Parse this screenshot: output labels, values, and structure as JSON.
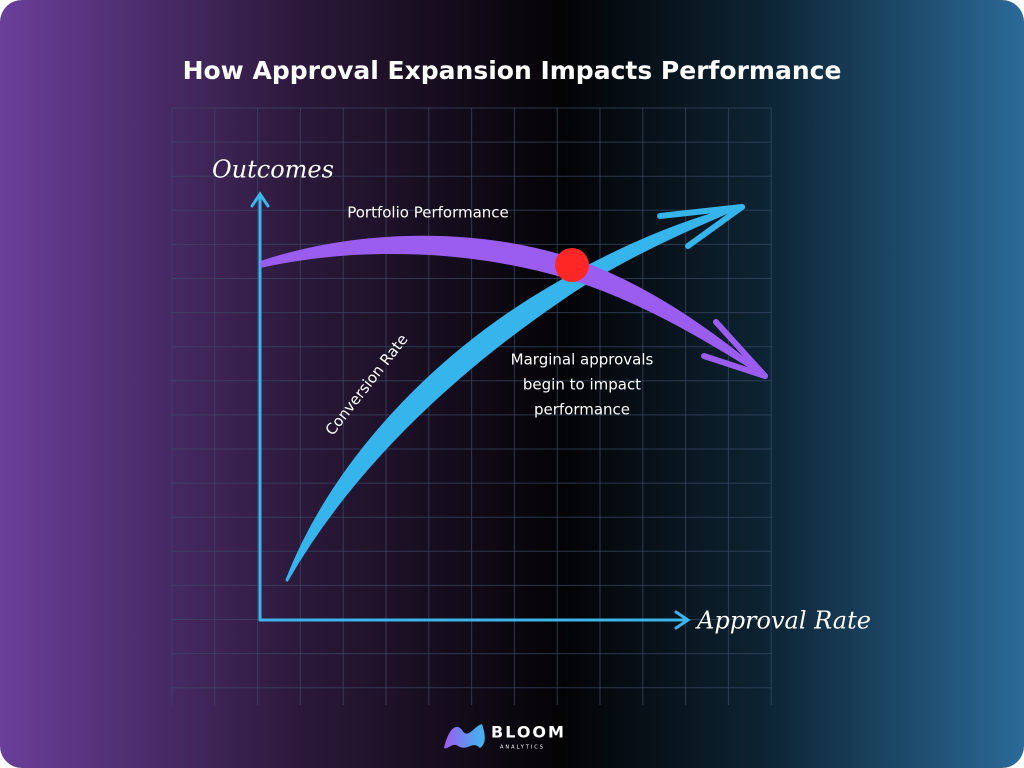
{
  "title": "How Approval Expansion Impacts Performance",
  "axes": {
    "y_label": "Outcomes",
    "x_label": "Approval Rate"
  },
  "curves": {
    "portfolio": "Portfolio Performance",
    "conversion": "Conversion Rate"
  },
  "annotation": [
    "Marginal approvals",
    "begin to impact",
    "performance"
  ],
  "logo": {
    "name": "BLOOM",
    "tagline": "ANALYTICS"
  }
}
